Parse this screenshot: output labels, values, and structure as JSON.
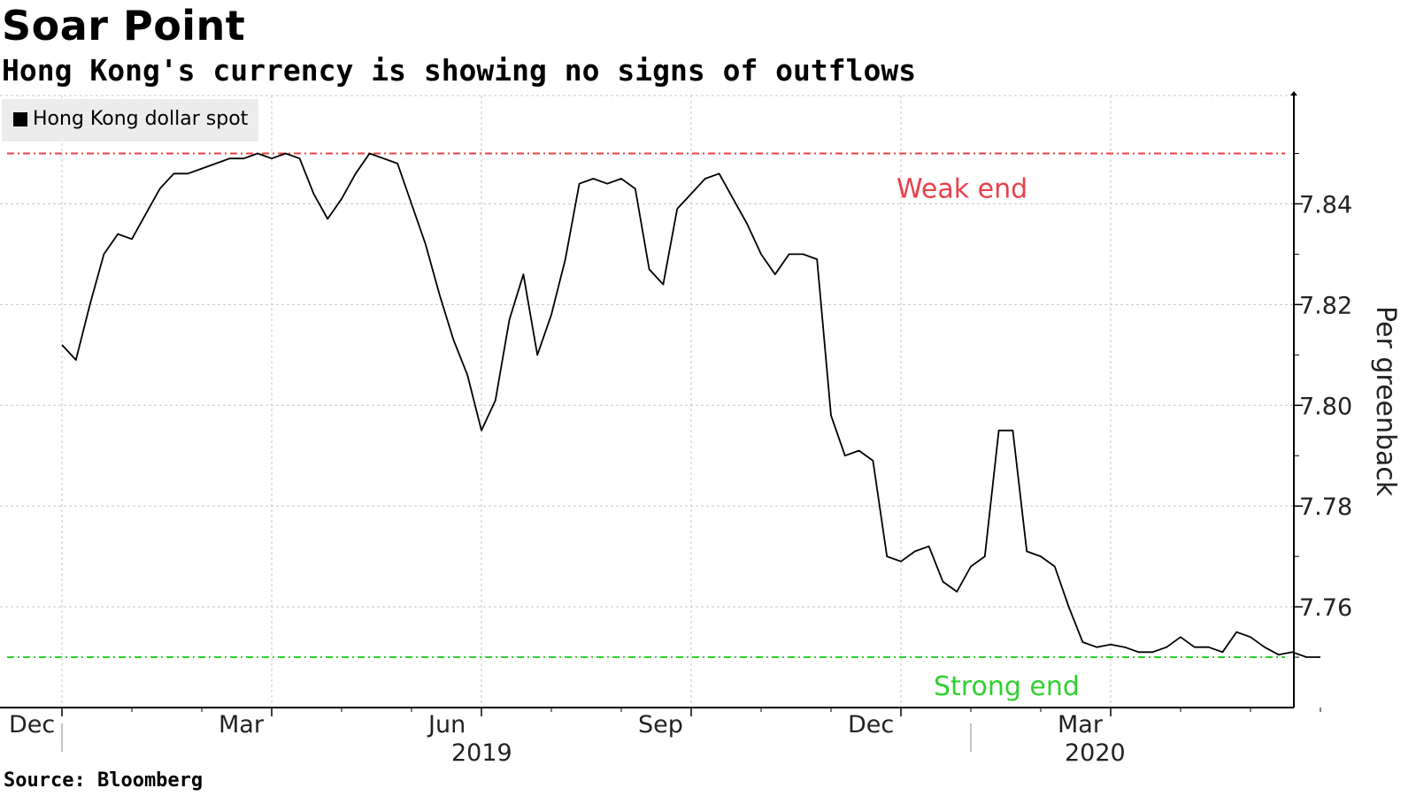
{
  "chart_data": {
    "type": "line",
    "title": "Soar Point",
    "subtitle": "Hong Kong's currency is showing no signs of outflows",
    "legend": [
      "Hong Kong dollar spot"
    ],
    "ylabel": "Per greenback",
    "source": "Source: Bloomberg",
    "ylim": [
      7.74,
      7.8615
    ],
    "y_ticks": [
      "7.76",
      "7.78",
      "7.80",
      "7.82",
      "7.84"
    ],
    "x_month_ticks": [
      "Dec",
      "Mar",
      "Jun",
      "Sep",
      "Dec",
      "Mar"
    ],
    "x_year_ticks": [
      "2019",
      "2020"
    ],
    "reference_lines": [
      {
        "label": "Weak end",
        "value": 7.85,
        "color": "#e8414a"
      },
      {
        "label": "Strong end",
        "value": 7.75,
        "color": "#2fd12f"
      }
    ],
    "series": [
      {
        "name": "Hong Kong dollar spot",
        "x_months": [
          0,
          0.2,
          0.4,
          0.6,
          0.8,
          1,
          1.2,
          1.4,
          1.6,
          1.8,
          2,
          2.2,
          2.4,
          2.6,
          2.8,
          3,
          3.2,
          3.4,
          3.6,
          3.8,
          4,
          4.2,
          4.4,
          4.6,
          4.8,
          5,
          5.2,
          5.4,
          5.6,
          5.8,
          6,
          6.2,
          6.4,
          6.6,
          6.8,
          7,
          7.2,
          7.4,
          7.6,
          7.8,
          8,
          8.2,
          8.4,
          8.6,
          8.8,
          9,
          9.2,
          9.4,
          9.6,
          9.8,
          10,
          10.2,
          10.4,
          10.6,
          10.8,
          11,
          11.2,
          11.4,
          11.6,
          11.8,
          12,
          12.2,
          12.4,
          12.6,
          12.8,
          13,
          13.2,
          13.4,
          13.6,
          13.8,
          14,
          14.2,
          14.4,
          14.6,
          14.8,
          15,
          15.2,
          15.4,
          15.6,
          15.8,
          16,
          16.2,
          16.4,
          16.6,
          16.8,
          17,
          17.2,
          17.4,
          17.6,
          17.8,
          18
        ],
        "values": [
          7.812,
          7.809,
          7.82,
          7.83,
          7.834,
          7.833,
          7.838,
          7.843,
          7.846,
          7.846,
          7.847,
          7.848,
          7.849,
          7.849,
          7.85,
          7.849,
          7.85,
          7.849,
          7.842,
          7.837,
          7.841,
          7.846,
          7.85,
          7.849,
          7.848,
          7.84,
          7.832,
          7.822,
          7.813,
          7.806,
          7.795,
          7.801,
          7.817,
          7.826,
          7.81,
          7.818,
          7.829,
          7.844,
          7.845,
          7.844,
          7.845,
          7.843,
          7.827,
          7.824,
          7.839,
          7.842,
          7.845,
          7.846,
          7.841,
          7.836,
          7.83,
          7.826,
          7.83,
          7.83,
          7.829,
          7.798,
          7.79,
          7.791,
          7.789,
          7.77,
          7.769,
          7.771,
          7.772,
          7.765,
          7.763,
          7.768,
          7.77,
          7.795,
          7.795,
          7.771,
          7.77,
          7.768,
          7.76,
          7.753,
          7.752,
          7.7525,
          7.752,
          7.751,
          7.751,
          7.752,
          7.754,
          7.752,
          7.752,
          7.751,
          7.755,
          7.754,
          7.752,
          7.7505,
          7.751,
          7.75,
          7.75
        ]
      }
    ]
  }
}
